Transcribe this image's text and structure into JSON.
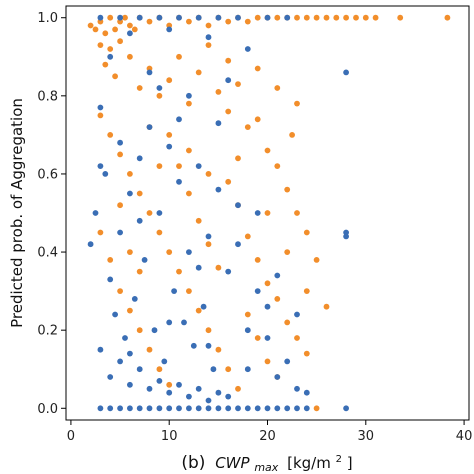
{
  "chart_data": {
    "type": "scatter",
    "title": "",
    "xlabel_prefix": "(b)",
    "xlabel_var": "CWP",
    "xlabel_sub": "max",
    "xlabel_unit": "[kg/m",
    "xlabel_exp": "2",
    "xlabel_close": "]",
    "ylabel": "Predicted prob. of Aggregation",
    "xlim": [
      -0.5,
      40.5
    ],
    "ylim": [
      -0.03,
      1.03
    ],
    "x_ticks": [
      0,
      10,
      20,
      30,
      40
    ],
    "x_tick_labels": [
      "0",
      "10",
      "20",
      "30",
      "40"
    ],
    "y_ticks": [
      0.0,
      0.2,
      0.4,
      0.6,
      0.8,
      1.0
    ],
    "y_tick_labels": [
      "0.0",
      "0.2",
      "0.4",
      "0.6",
      "0.8",
      "1.0"
    ],
    "grid": false,
    "legend": "none",
    "colors": {
      "series_a": "#f28e2b",
      "series_b": "#3a6eb5",
      "axes": "#000000"
    },
    "series": [
      {
        "color": "#f28e2b",
        "points": [
          [
            2,
            0.98
          ],
          [
            2.5,
            0.97
          ],
          [
            3,
            0.99
          ],
          [
            3.5,
            0.96
          ],
          [
            4,
            1.0
          ],
          [
            4.5,
            0.97
          ],
          [
            5,
            0.99
          ],
          [
            5.5,
            1.0
          ],
          [
            6,
            0.98
          ],
          [
            6.5,
            0.97
          ],
          [
            7,
            1.0
          ],
          [
            8,
            0.99
          ],
          [
            9,
            1.0
          ],
          [
            10,
            0.98
          ],
          [
            11,
            1.0
          ],
          [
            12,
            0.99
          ],
          [
            13,
            1.0
          ],
          [
            14,
            0.98
          ],
          [
            15,
            1.0
          ],
          [
            16,
            0.99
          ],
          [
            17,
            1.0
          ],
          [
            18,
            0.99
          ],
          [
            19,
            1.0
          ],
          [
            20,
            1.0
          ],
          [
            21,
            1.0
          ],
          [
            22,
            1.0
          ],
          [
            23,
            1.0
          ],
          [
            24,
            1.0
          ],
          [
            25,
            1.0
          ],
          [
            26,
            1.0
          ],
          [
            27,
            1.0
          ],
          [
            28,
            1.0
          ],
          [
            29,
            1.0
          ],
          [
            30,
            1.0
          ],
          [
            31,
            1.0
          ],
          [
            33.5,
            1.0
          ],
          [
            38.3,
            1.0
          ],
          [
            3,
            0.93
          ],
          [
            4,
            0.92
          ],
          [
            5,
            0.94
          ],
          [
            6,
            0.9
          ],
          [
            3.5,
            0.88
          ],
          [
            4.5,
            0.85
          ],
          [
            7,
            0.82
          ],
          [
            8,
            0.87
          ],
          [
            9,
            0.8
          ],
          [
            10,
            0.84
          ],
          [
            12,
            0.78
          ],
          [
            13,
            0.86
          ],
          [
            15,
            0.81
          ],
          [
            16,
            0.76
          ],
          [
            17,
            0.83
          ],
          [
            18,
            0.72
          ],
          [
            19,
            0.74
          ],
          [
            20,
            0.66
          ],
          [
            21,
            0.62
          ],
          [
            22,
            0.56
          ],
          [
            23,
            0.5
          ],
          [
            24,
            0.45
          ],
          [
            25,
            0.38
          ],
          [
            26,
            0.26
          ],
          [
            22.5,
            0.7
          ],
          [
            3,
            0.75
          ],
          [
            4,
            0.7
          ],
          [
            5,
            0.65
          ],
          [
            6,
            0.6
          ],
          [
            7,
            0.55
          ],
          [
            8,
            0.5
          ],
          [
            9,
            0.45
          ],
          [
            10,
            0.4
          ],
          [
            11,
            0.35
          ],
          [
            12,
            0.3
          ],
          [
            13,
            0.25
          ],
          [
            14,
            0.2
          ],
          [
            15,
            0.15
          ],
          [
            16,
            0.1
          ],
          [
            17,
            0.05
          ],
          [
            3,
            0.45
          ],
          [
            4,
            0.38
          ],
          [
            5,
            0.3
          ],
          [
            6,
            0.25
          ],
          [
            7,
            0.2
          ],
          [
            8,
            0.15
          ],
          [
            9,
            0.1
          ],
          [
            10,
            0.06
          ],
          [
            11,
            0.62
          ],
          [
            12,
            0.55
          ],
          [
            13,
            0.48
          ],
          [
            14,
            0.42
          ],
          [
            15,
            0.36
          ],
          [
            16,
            0.58
          ],
          [
            17,
            0.52
          ],
          [
            18,
            0.44
          ],
          [
            19,
            0.38
          ],
          [
            20,
            0.32
          ],
          [
            21,
            0.28
          ],
          [
            22,
            0.22
          ],
          [
            23,
            0.18
          ],
          [
            24,
            0.14
          ],
          [
            25,
            0.0
          ],
          [
            11,
            0.9
          ],
          [
            14,
            0.93
          ],
          [
            16,
            0.89
          ],
          [
            19,
            0.87
          ],
          [
            21,
            0.82
          ],
          [
            23,
            0.78
          ],
          [
            10,
            0.7
          ],
          [
            12,
            0.66
          ],
          [
            14,
            0.6
          ],
          [
            17,
            0.64
          ],
          [
            20,
            0.5
          ],
          [
            22,
            0.4
          ],
          [
            24,
            0.3
          ],
          [
            5,
            0.52
          ],
          [
            6,
            0.4
          ],
          [
            7,
            0.35
          ],
          [
            8,
            0.72
          ],
          [
            9,
            0.62
          ],
          [
            18,
            0.24
          ],
          [
            19,
            0.18
          ],
          [
            20,
            0.12
          ],
          [
            21,
            0.08
          ]
        ]
      },
      {
        "color": "#3a6eb5",
        "points": [
          [
            2,
            0.42
          ],
          [
            2.5,
            0.5
          ],
          [
            3,
            0.77
          ],
          [
            3.5,
            0.6
          ],
          [
            4,
            0.33
          ],
          [
            4.5,
            0.24
          ],
          [
            5,
            0.45
          ],
          [
            5.5,
            0.18
          ],
          [
            6,
            0.55
          ],
          [
            6.5,
            0.28
          ],
          [
            7,
            0.64
          ],
          [
            7.5,
            0.38
          ],
          [
            8,
            0.72
          ],
          [
            8.5,
            0.2
          ],
          [
            9,
            0.5
          ],
          [
            9.5,
            0.12
          ],
          [
            10,
            0.67
          ],
          [
            10.5,
            0.3
          ],
          [
            11,
            0.58
          ],
          [
            11.5,
            0.22
          ],
          [
            12,
            0.4
          ],
          [
            12.5,
            0.16
          ],
          [
            13,
            0.62
          ],
          [
            13.5,
            0.26
          ],
          [
            14,
            0.44
          ],
          [
            14.5,
            0.1
          ],
          [
            15,
            0.73
          ],
          [
            16,
            0.35
          ],
          [
            17,
            0.52
          ],
          [
            18,
            0.2
          ],
          [
            19,
            0.3
          ],
          [
            20,
            0.18
          ],
          [
            21,
            0.08
          ],
          [
            22,
            0.12
          ],
          [
            23,
            0.05
          ],
          [
            24,
            0.04
          ],
          [
            28,
            0.86
          ],
          [
            28,
            0.45
          ],
          [
            28,
            0.44
          ],
          [
            28,
            0.0
          ],
          [
            3,
            0.15
          ],
          [
            4,
            0.08
          ],
          [
            5,
            0.12
          ],
          [
            6,
            0.06
          ],
          [
            7,
            0.1
          ],
          [
            8,
            0.05
          ],
          [
            9,
            0.07
          ],
          [
            10,
            0.04
          ],
          [
            11,
            0.06
          ],
          [
            12,
            0.03
          ],
          [
            13,
            0.05
          ],
          [
            14,
            0.02
          ],
          [
            15,
            0.04
          ],
          [
            16,
            0.03
          ],
          [
            3,
            0.0
          ],
          [
            4,
            0.0
          ],
          [
            5,
            0.0
          ],
          [
            6,
            0.0
          ],
          [
            7,
            0.0
          ],
          [
            8,
            0.0
          ],
          [
            9,
            0.0
          ],
          [
            10,
            0.0
          ],
          [
            11,
            0.0
          ],
          [
            12,
            0.0
          ],
          [
            13,
            0.0
          ],
          [
            14,
            0.0
          ],
          [
            15,
            0.0
          ],
          [
            16,
            0.0
          ],
          [
            17,
            0.0
          ],
          [
            18,
            0.0
          ],
          [
            19,
            0.0
          ],
          [
            20,
            0.0
          ],
          [
            21,
            0.0
          ],
          [
            22,
            0.0
          ],
          [
            23,
            0.0
          ],
          [
            24,
            0.0
          ],
          [
            3,
            1.0
          ],
          [
            5,
            1.0
          ],
          [
            7,
            1.0
          ],
          [
            9,
            1.0
          ],
          [
            11,
            1.0
          ],
          [
            13,
            1.0
          ],
          [
            15,
            1.0
          ],
          [
            17,
            1.0
          ],
          [
            20,
            1.0
          ],
          [
            22,
            1.0
          ],
          [
            6,
            0.96
          ],
          [
            10,
            0.97
          ],
          [
            14,
            0.95
          ],
          [
            4,
            0.9
          ],
          [
            8,
            0.86
          ],
          [
            12,
            0.8
          ],
          [
            16,
            0.84
          ],
          [
            18,
            0.92
          ],
          [
            3,
            0.62
          ],
          [
            5,
            0.68
          ],
          [
            7,
            0.48
          ],
          [
            9,
            0.82
          ],
          [
            11,
            0.74
          ],
          [
            13,
            0.36
          ],
          [
            15,
            0.56
          ],
          [
            17,
            0.42
          ],
          [
            19,
            0.5
          ],
          [
            21,
            0.34
          ],
          [
            23,
            0.24
          ],
          [
            6,
            0.14
          ],
          [
            10,
            0.22
          ],
          [
            14,
            0.16
          ],
          [
            18,
            0.1
          ],
          [
            20,
            0.26
          ]
        ]
      }
    ]
  }
}
